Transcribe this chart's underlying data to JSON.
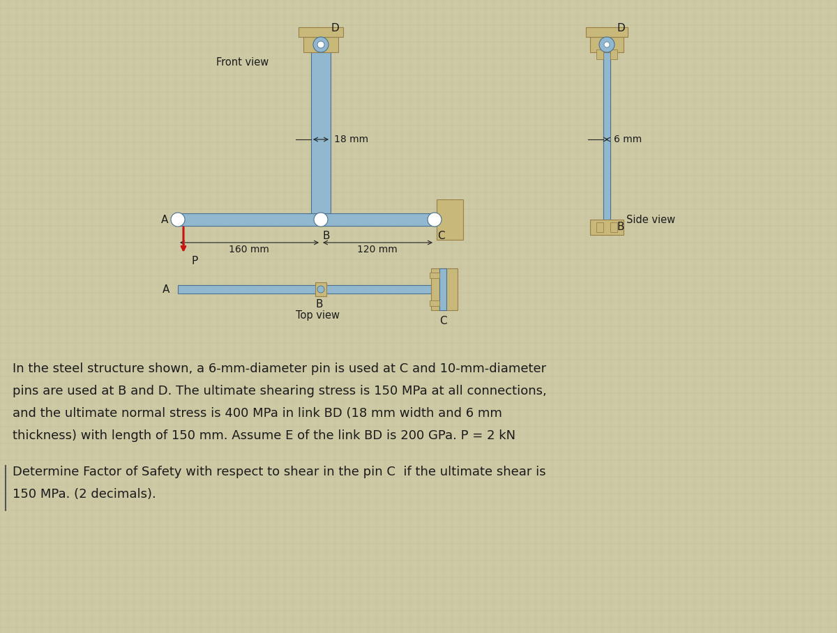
{
  "bg_color": "#cdc9a5",
  "grid_color": "#bfba94",
  "text_color": "#1a1a1a",
  "steel_light": "#92b8d0",
  "steel_mid": "#6e9ab8",
  "steel_dark": "#4a7090",
  "tan_light": "#c8b87a",
  "tan_mid": "#b8a060",
  "tan_dark": "#988048",
  "red_arrow": "#cc1111",
  "dim_color": "#222222",
  "fs_title": 10.5,
  "fs_label": 11,
  "fs_dim": 10,
  "fs_text": 13,
  "problem_line1": "In the steel structure shown, a 6-mm-diameter pin is used at C and 10-mm-diameter",
  "problem_line2": "pins are used at B and D. The ultimate shearing stress is 150 MPa at all connections,",
  "problem_line3": "and the ultimate normal stress is 400 MPa in link BD (18 mm width and 6 mm",
  "problem_line4": "thickness) with length of 150 mm. Assume E of the link BD is 200 GPa. P = 2 kN",
  "question_line1": "Determine Factor of Safety with respect to shear in the pin C  if the ultimate shear is",
  "question_line2": "150 MPa. (2 decimals)."
}
